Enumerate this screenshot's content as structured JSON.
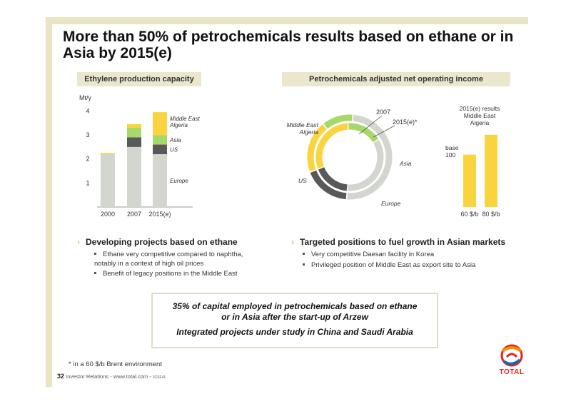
{
  "slide": {
    "title": "More than 50% of petrochemicals results based on ethane or in Asia by 2015(e)"
  },
  "left_chart": {
    "header": "Ethylene production capacity",
    "unit": "Mt/y"
  },
  "right_chart": {
    "header": "Petrochemicals adjusted net operating income",
    "donut_label_outer": "2007",
    "donut_label_inner": "2015(e)*",
    "label_me": "Middle East Algeria",
    "label_asia": "Asia",
    "label_us": "US",
    "label_europe": "Europe",
    "results_title": "2015(e) results Middle East Algeria",
    "base_label": "base 100"
  },
  "chart_data": [
    {
      "type": "bar",
      "stacked": true,
      "title": "Ethylene production capacity",
      "ylabel": "Mt/y",
      "categories": [
        "2000",
        "2007",
        "2015(e)"
      ],
      "yticks": [
        1,
        2,
        3,
        4
      ],
      "ylim": [
        0,
        4.4
      ],
      "series": [
        {
          "name": "Europe",
          "color": "#d2d6cf",
          "values": [
            2.2,
            2.5,
            2.2
          ]
        },
        {
          "name": "US",
          "color": "#595959",
          "values": [
            0.0,
            0.4,
            0.4
          ]
        },
        {
          "name": "Asia",
          "color": "#a6d96a",
          "values": [
            0.0,
            0.4,
            0.4
          ]
        },
        {
          "name": "Middle East Algeria",
          "color": "#f9d43e",
          "values": [
            0.05,
            0.15,
            0.95
          ]
        }
      ]
    },
    {
      "type": "donut",
      "title": "Petrochemicals adjusted net operating income",
      "rings": [
        {
          "name": "2007",
          "slices": [
            {
              "label": "Middle East Algeria",
              "value": 20,
              "color": "#f9d43e"
            },
            {
              "label": "Asia",
              "value": 12,
              "color": "#a6d96a"
            },
            {
              "label": "Europe",
              "value": 50,
              "color": "#d2d6cf"
            },
            {
              "label": "US",
              "value": 18,
              "color": "#595959"
            }
          ]
        },
        {
          "name": "2015(e)*",
          "slices": [
            {
              "label": "Middle East Algeria",
              "value": 30,
              "color": "#f9d43e"
            },
            {
              "label": "Asia",
              "value": 17,
              "color": "#a6d96a"
            },
            {
              "label": "Europe",
              "value": 35,
              "color": "#d2d6cf"
            },
            {
              "label": "US",
              "value": 18,
              "color": "#595959"
            }
          ]
        }
      ]
    },
    {
      "type": "bar",
      "title": "2015(e) results Middle East Algeria",
      "categories": [
        "60 $/b",
        "80 $/b"
      ],
      "values": [
        100,
        138
      ],
      "color": "#f9d43e",
      "ylim": [
        0,
        150
      ]
    }
  ],
  "bullets_left": {
    "heading": "Developing projects based on ethane",
    "items": [
      "Ethane very competitive compared to naphtha, notably in a context of high oil prices",
      "Benefit of legacy positions in the Middle East"
    ]
  },
  "bullets_right": {
    "heading": "Targeted positions to fuel growth in Asian markets",
    "items": [
      "Very competitive Daesan facility in Korea",
      "Privileged position of Middle East as export site to Asia"
    ]
  },
  "callout": {
    "line1": "35% of capital employed in petrochemicals based on ethane",
    "line2": "or in Asia after the start-up of Arzew",
    "line3": "Integrated projects under study in China and Saudi Arabia"
  },
  "footnote": "* in a 60 $/b Brent environment",
  "footer": {
    "page": "32",
    "text": "Investor Relations - www.total.com -",
    "code": "3CSF41"
  },
  "logo": {
    "text": "TOTAL"
  },
  "colors": {
    "accent_bar": "#e8e4c4",
    "europe": "#d2d6cf",
    "us": "#595959",
    "asia": "#a6d96a",
    "middle_east": "#f9d43e",
    "logo_red": "#e2231a"
  }
}
